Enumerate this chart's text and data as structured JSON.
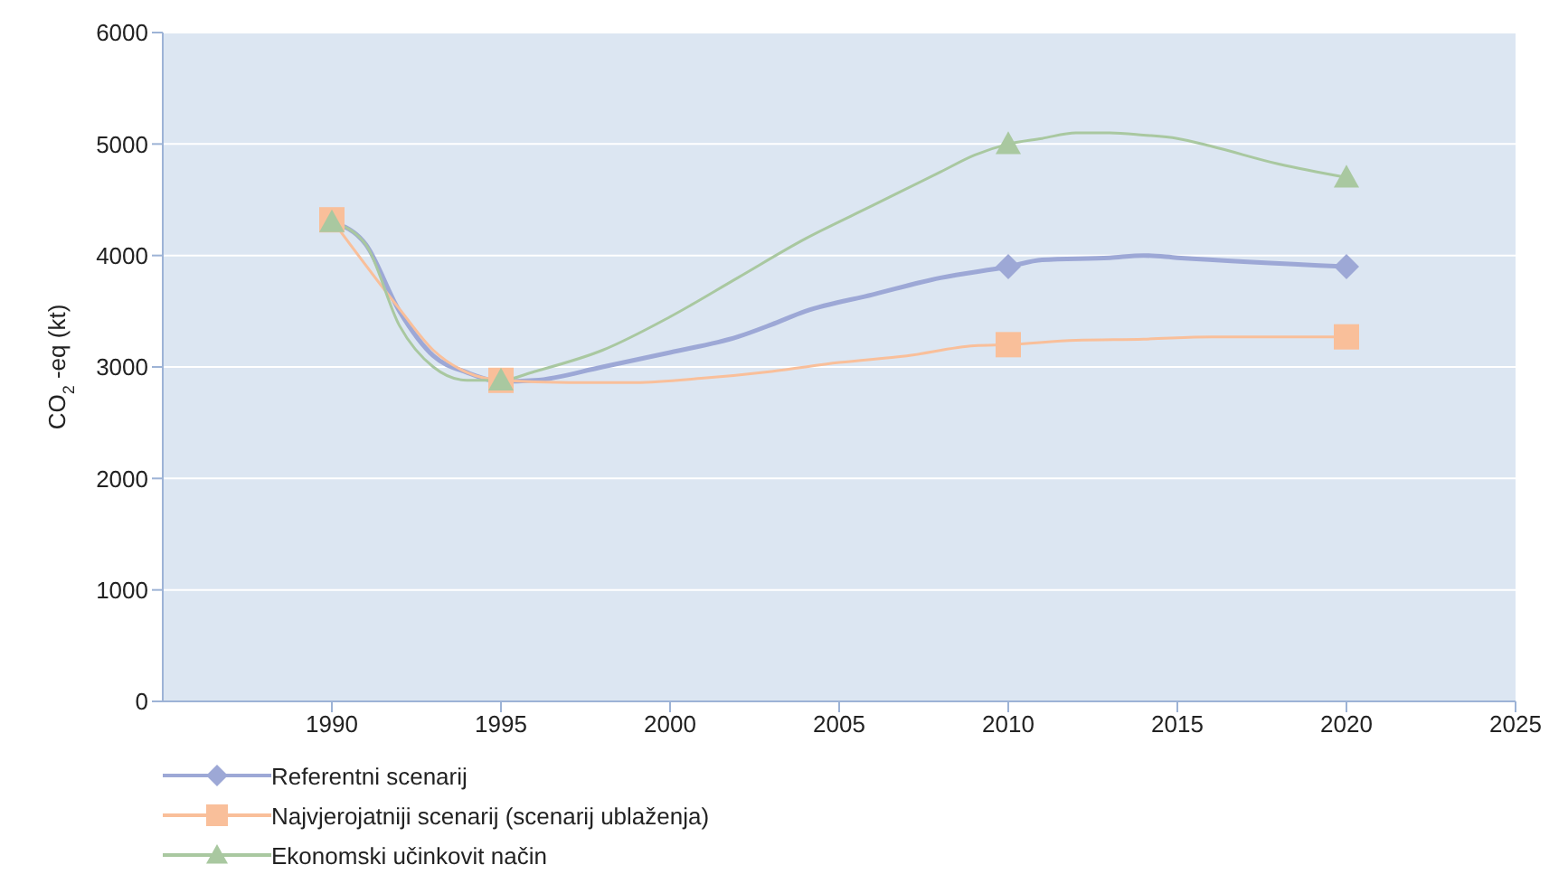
{
  "chart_data": {
    "type": "line",
    "ylabel": "CO$_{2}$ -eq (kt)",
    "xlim": [
      1985,
      2025
    ],
    "xticks": [
      1990,
      1995,
      2000,
      2005,
      2010,
      2015,
      2020,
      2025
    ],
    "ylim": [
      0,
      6000
    ],
    "yticks": [
      0,
      1000,
      2000,
      3000,
      4000,
      5000,
      6000
    ],
    "grid": "y",
    "legend": "bottom left",
    "series": [
      {
        "name": "Referentni scenarij",
        "color": "#9da8d6",
        "marker": "none",
        "x": [
          1990,
          1991,
          1992,
          1993,
          1994,
          1995,
          1996,
          1998,
          2000,
          2002,
          2003,
          2004,
          2006,
          2008,
          2010,
          2011,
          2013,
          2014,
          2015,
          2020
        ],
        "values": [
          4300,
          4100,
          3500,
          3100,
          2950,
          2870,
          2880,
          3000,
          3130,
          3270,
          3380,
          3500,
          3650,
          3800,
          3900,
          3960,
          3980,
          4000,
          3980,
          3900
        ]
      },
      {
        "name": "Najvjerojatniji scenarij (scenarij ublaženja)",
        "color": "#f9bf9a",
        "marker": "none",
        "x": [
          1990,
          1992,
          1993,
          1994,
          1995,
          1997,
          1999,
          2001,
          2003,
          2005,
          2007,
          2009,
          2010,
          2012,
          2014,
          2016,
          2020
        ],
        "values": [
          4320,
          3520,
          3150,
          2950,
          2880,
          2860,
          2860,
          2900,
          2960,
          3040,
          3100,
          3190,
          3200,
          3240,
          3250,
          3270,
          3270
        ]
      },
      {
        "name": "Ekonomski učinkovit način",
        "color": "#a9c8a0",
        "marker": "none",
        "x": [
          1990,
          1991,
          1992,
          1993,
          1994,
          1995,
          1996,
          1998,
          2000,
          2002,
          2004,
          2006,
          2008,
          2009,
          2010,
          2011,
          2012,
          2013,
          2014,
          2015,
          2016,
          2018,
          2020
        ],
        "values": [
          4300,
          4100,
          3370,
          3000,
          2880,
          2880,
          2960,
          3150,
          3450,
          3800,
          4150,
          4450,
          4750,
          4900,
          5000,
          5050,
          5100,
          5100,
          5080,
          5050,
          4980,
          4820,
          4700
        ]
      },
      {
        "type": "scatter",
        "color": "#9da8d6",
        "marker": "diamond",
        "x": [
          2010,
          2020
        ],
        "values": [
          3900,
          3900
        ]
      },
      {
        "type": "scatter",
        "color": "#f9bf9a",
        "marker": "square",
        "x": [
          1990,
          1995,
          2010,
          2020
        ],
        "values": [
          4320,
          2880,
          3200,
          3270
        ]
      },
      {
        "type": "scatter",
        "color": "#a9c8a0",
        "marker": "triangle",
        "x": [
          1990,
          1995,
          2010,
          2020
        ],
        "values": [
          4300,
          2880,
          5000,
          4700
        ]
      }
    ]
  }
}
